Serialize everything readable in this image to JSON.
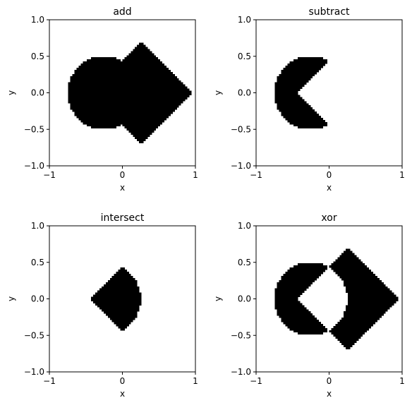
{
  "colors": {
    "fill": "#000000",
    "background": "#ffffff"
  },
  "shape_definitions": {
    "circle": {
      "center": [
        -0.25,
        0.0
      ],
      "radius": 0.5
    },
    "diamond": {
      "center": [
        0.25,
        0.0
      ],
      "half_diagonal": 0.7
    },
    "grid_cells": 70
  },
  "chart_data": [
    {
      "type": "heatmap",
      "title": "add",
      "operation": "union",
      "xlabel": "x",
      "ylabel": "y",
      "xlim": [
        -1,
        1
      ],
      "ylim": [
        -1,
        1
      ],
      "xticks": [
        -1,
        0,
        1
      ],
      "xtick_labels": [
        "−1",
        "0",
        "1"
      ],
      "yticks": [
        1.0,
        0.5,
        0.0,
        -0.5,
        -1.0
      ],
      "ytick_labels": [
        "1.0",
        "0.5",
        "0.0",
        "−0.5",
        "−1.0"
      ]
    },
    {
      "type": "heatmap",
      "title": "subtract",
      "operation": "circle minus diamond",
      "xlabel": "x",
      "ylabel": "y",
      "xlim": [
        -1,
        1
      ],
      "ylim": [
        -1,
        1
      ],
      "xticks": [
        -1,
        0,
        1
      ],
      "xtick_labels": [
        "−1",
        "0",
        "1"
      ],
      "yticks": [
        1.0,
        0.5,
        0.0,
        -0.5,
        -1.0
      ],
      "ytick_labels": [
        "1.0",
        "0.5",
        "0.0",
        "−0.5",
        "−1.0"
      ]
    },
    {
      "type": "heatmap",
      "title": "intersect",
      "operation": "intersection",
      "xlabel": "x",
      "ylabel": "y",
      "xlim": [
        -1,
        1
      ],
      "ylim": [
        -1,
        1
      ],
      "xticks": [
        -1,
        0,
        1
      ],
      "xtick_labels": [
        "−1",
        "0",
        "1"
      ],
      "yticks": [
        1.0,
        0.5,
        0.0,
        -0.5,
        -1.0
      ],
      "ytick_labels": [
        "1.0",
        "0.5",
        "0.0",
        "−0.5",
        "−1.0"
      ]
    },
    {
      "type": "heatmap",
      "title": "xor",
      "operation": "symmetric difference",
      "xlabel": "x",
      "ylabel": "y",
      "xlim": [
        -1,
        1
      ],
      "ylim": [
        -1,
        1
      ],
      "xticks": [
        -1,
        0,
        1
      ],
      "xtick_labels": [
        "−1",
        "0",
        "1"
      ],
      "yticks": [
        1.0,
        0.5,
        0.0,
        -0.5,
        -1.0
      ],
      "ytick_labels": [
        "1.0",
        "0.5",
        "0.0",
        "−0.5",
        "−1.0"
      ]
    }
  ]
}
